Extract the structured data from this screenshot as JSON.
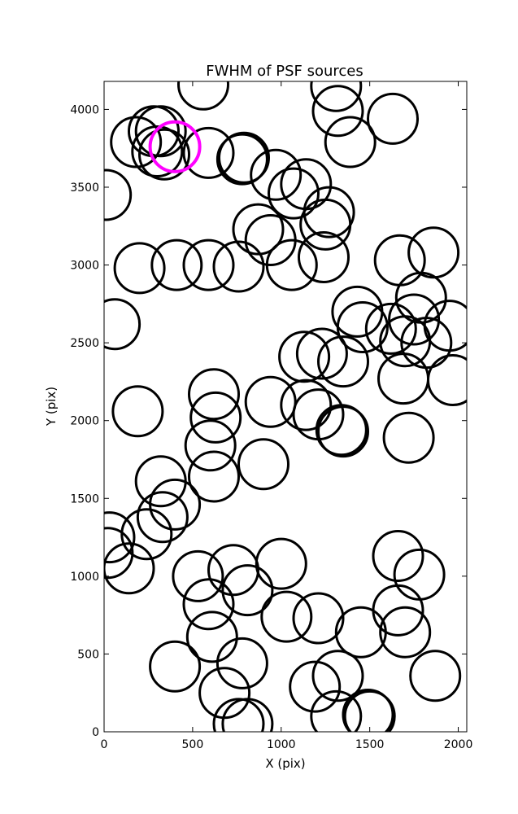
{
  "chart_data": {
    "type": "scatter",
    "title": "FWHM of PSF sources",
    "xlabel": "X (pix)",
    "ylabel": "Y (pix)",
    "xlim": [
      0,
      2048
    ],
    "ylim": [
      0,
      4180
    ],
    "xticks": [
      0,
      500,
      1000,
      1500,
      2000
    ],
    "yticks": [
      0,
      500,
      1000,
      1500,
      2000,
      2500,
      3000,
      3500,
      4000
    ],
    "grid": false,
    "colors": {
      "default": "#000000",
      "highlight": "#ff00ff"
    },
    "marker_radius_data_x": 140,
    "points": [
      {
        "x": 560,
        "y": 4160
      },
      {
        "x": 1310,
        "y": 4150
      },
      {
        "x": 1320,
        "y": 3990
      },
      {
        "x": 1630,
        "y": 3940
      },
      {
        "x": 180,
        "y": 3790
      },
      {
        "x": 280,
        "y": 3860
      },
      {
        "x": 320,
        "y": 3860
      },
      {
        "x": 300,
        "y": 3730
      },
      {
        "x": 340,
        "y": 3710
      },
      {
        "x": 590,
        "y": 3720
      },
      {
        "x": 780,
        "y": 3680
      },
      {
        "x": 790,
        "y": 3690
      },
      {
        "x": 1390,
        "y": 3790
      },
      {
        "x": 10,
        "y": 3450
      },
      {
        "x": 970,
        "y": 3580
      },
      {
        "x": 1070,
        "y": 3460
      },
      {
        "x": 1140,
        "y": 3520
      },
      {
        "x": 1270,
        "y": 3340
      },
      {
        "x": 1250,
        "y": 3260
      },
      {
        "x": 870,
        "y": 3230
      },
      {
        "x": 940,
        "y": 3160
      },
      {
        "x": 200,
        "y": 2980
      },
      {
        "x": 410,
        "y": 3000
      },
      {
        "x": 590,
        "y": 3000
      },
      {
        "x": 760,
        "y": 2990
      },
      {
        "x": 1060,
        "y": 3000
      },
      {
        "x": 1240,
        "y": 3050
      },
      {
        "x": 1670,
        "y": 3030
      },
      {
        "x": 1860,
        "y": 3080
      },
      {
        "x": 60,
        "y": 2620
      },
      {
        "x": 1430,
        "y": 2700
      },
      {
        "x": 1460,
        "y": 2600
      },
      {
        "x": 1620,
        "y": 2590
      },
      {
        "x": 1700,
        "y": 2510
      },
      {
        "x": 1750,
        "y": 2650
      },
      {
        "x": 1790,
        "y": 2790
      },
      {
        "x": 1820,
        "y": 2500
      },
      {
        "x": 1950,
        "y": 2610
      },
      {
        "x": 1970,
        "y": 2260
      },
      {
        "x": 1690,
        "y": 2270
      },
      {
        "x": 1130,
        "y": 2410
      },
      {
        "x": 1230,
        "y": 2430
      },
      {
        "x": 1350,
        "y": 2380
      },
      {
        "x": 620,
        "y": 2170
      },
      {
        "x": 630,
        "y": 2020
      },
      {
        "x": 940,
        "y": 2120
      },
      {
        "x": 1140,
        "y": 2100
      },
      {
        "x": 1210,
        "y": 2040
      },
      {
        "x": 1340,
        "y": 1940
      },
      {
        "x": 1350,
        "y": 1930
      },
      {
        "x": 1720,
        "y": 1890
      },
      {
        "x": 190,
        "y": 2060
      },
      {
        "x": 600,
        "y": 1840
      },
      {
        "x": 620,
        "y": 1640
      },
      {
        "x": 900,
        "y": 1720
      },
      {
        "x": 320,
        "y": 1610
      },
      {
        "x": 400,
        "y": 1460
      },
      {
        "x": 330,
        "y": 1380
      },
      {
        "x": 240,
        "y": 1270
      },
      {
        "x": 30,
        "y": 1250
      },
      {
        "x": 20,
        "y": 1150
      },
      {
        "x": 140,
        "y": 1050
      },
      {
        "x": 530,
        "y": 1000
      },
      {
        "x": 730,
        "y": 1040
      },
      {
        "x": 1000,
        "y": 1080
      },
      {
        "x": 590,
        "y": 820
      },
      {
        "x": 810,
        "y": 910
      },
      {
        "x": 1030,
        "y": 740
      },
      {
        "x": 1210,
        "y": 730
      },
      {
        "x": 610,
        "y": 610
      },
      {
        "x": 400,
        "y": 420
      },
      {
        "x": 780,
        "y": 440
      },
      {
        "x": 680,
        "y": 250
      },
      {
        "x": 760,
        "y": 50
      },
      {
        "x": 810,
        "y": 50
      },
      {
        "x": 1190,
        "y": 290
      },
      {
        "x": 1320,
        "y": 360
      },
      {
        "x": 1310,
        "y": 100
      },
      {
        "x": 1490,
        "y": 110
      },
      {
        "x": 1500,
        "y": 100
      },
      {
        "x": 1450,
        "y": 640
      },
      {
        "x": 1660,
        "y": 780
      },
      {
        "x": 1700,
        "y": 640
      },
      {
        "x": 1660,
        "y": 1130
      },
      {
        "x": 1780,
        "y": 1010
      },
      {
        "x": 1870,
        "y": 360
      },
      {
        "x": 400,
        "y": 3760,
        "highlight": true
      }
    ]
  }
}
